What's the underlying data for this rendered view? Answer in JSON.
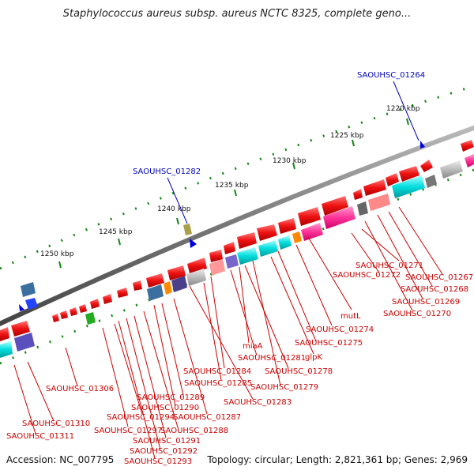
{
  "title": "Staphylococcus aureus subsp. aureus NCTC 8325, complete geno...",
  "footer": {
    "accession": "Accession: NC_007795",
    "info": "Topology: circular; Length: 2,821,361 bp; Genes: 2,969"
  },
  "colors": {
    "cds_forward": "#ee1111",
    "cds_reverse": "#ee1111",
    "rna": "#00cccc",
    "pseudo": "#ff3399",
    "backbone": "#808080",
    "label_red": "#cc0000",
    "label_blue": "#0000bb",
    "tick_green": "#118811"
  },
  "map": {
    "scale_ticks": [
      {
        "label": "1220 kbp"
      },
      {
        "label": "1225 kbp"
      },
      {
        "label": "1230 kbp"
      },
      {
        "label": "1235 kbp"
      },
      {
        "label": "1240 kbp"
      },
      {
        "label": "1245 kbp"
      },
      {
        "label": "1250 kbp"
      }
    ],
    "callouts": [
      {
        "label": "SAOUHSC_01264"
      },
      {
        "label": "SAOUHSC_01282"
      }
    ],
    "gene_labels": [
      {
        "label": "SAOUHSC_01271"
      },
      {
        "label": "SAOUHSC_01272"
      },
      {
        "label": "SAOUHSC_01267"
      },
      {
        "label": "SAOUHSC_01268"
      },
      {
        "label": "SAOUHSC_01269"
      },
      {
        "label": "SAOUHSC_01270"
      },
      {
        "label": "mutL"
      },
      {
        "label": "SAOUHSC_01274"
      },
      {
        "label": "SAOUHSC_01275"
      },
      {
        "label": "glpK"
      },
      {
        "label": "miaA"
      },
      {
        "label": "SAOUHSC_01281"
      },
      {
        "label": "SAOUHSC_01278"
      },
      {
        "label": "SAOUHSC_01284"
      },
      {
        "label": "SAOUHSC_01285"
      },
      {
        "label": "SAOUHSC_01279"
      },
      {
        "label": "SAOUHSC_01283"
      },
      {
        "label": "SAOUHSC_01306"
      },
      {
        "label": "SAOUHSC_01289"
      },
      {
        "label": "SAOUHSC_01290"
      },
      {
        "label": "SAOUHSC_01294"
      },
      {
        "label": "SAOUHSC_01287"
      },
      {
        "label": "SAOUHSC_01310"
      },
      {
        "label": "SAOUHSC_01297"
      },
      {
        "label": "SAOUHSC_01288"
      },
      {
        "label": "SAOUHSC_01311"
      },
      {
        "label": "SAOUHSC_01291"
      },
      {
        "label": "SAOUHSC_01292"
      },
      {
        "label": "SAOUHSC_01293"
      }
    ]
  }
}
